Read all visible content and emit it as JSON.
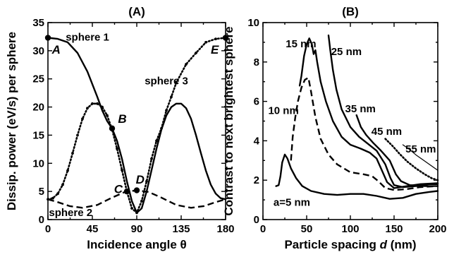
{
  "chart_data": [
    {
      "type": "line",
      "panel_label": "(A)",
      "xlabel": "Incidence angle θ",
      "ylabel": "Dissip. power (eV/s) per sphere",
      "xlim": [
        0,
        180
      ],
      "ylim": [
        0,
        35
      ],
      "xticks": [
        "0",
        "45",
        "90",
        "135",
        "180"
      ],
      "yticks": [
        "0",
        "5",
        "10",
        "15",
        "20",
        "25",
        "30",
        "35"
      ],
      "grid": false,
      "legend": "none",
      "series": [
        {
          "name": "sphere 1",
          "style": "solid",
          "points": [
            [
              0,
              32.3
            ],
            [
              10,
              32.1
            ],
            [
              20,
              31.5
            ],
            [
              30,
              29.6
            ],
            [
              40,
              26.3
            ],
            [
              50,
              21.8
            ],
            [
              55,
              19.4
            ],
            [
              60,
              17.5
            ],
            [
              65,
              16.2
            ],
            [
              70,
              14.0
            ],
            [
              75,
              10.8
            ],
            [
              80,
              6.8
            ],
            [
              85,
              3.3
            ],
            [
              90,
              1.2
            ],
            [
              95,
              2.0
            ],
            [
              100,
              5.0
            ],
            [
              105,
              8.8
            ],
            [
              110,
              12.6
            ],
            [
              115,
              16.0
            ],
            [
              120,
              18.5
            ],
            [
              125,
              20.0
            ],
            [
              130,
              20.6
            ],
            [
              135,
              20.6
            ],
            [
              140,
              19.8
            ],
            [
              145,
              17.9
            ],
            [
              150,
              15.0
            ],
            [
              155,
              11.8
            ],
            [
              160,
              8.7
            ],
            [
              165,
              6.2
            ],
            [
              170,
              4.6
            ],
            [
              175,
              3.8
            ],
            [
              180,
              3.6
            ]
          ]
        },
        {
          "name": "sphere 3",
          "style": "dotted",
          "points": [
            [
              0,
              3.6
            ],
            [
              5,
              3.8
            ],
            [
              10,
              4.6
            ],
            [
              15,
              6.2
            ],
            [
              20,
              8.7
            ],
            [
              25,
              11.8
            ],
            [
              30,
              15.0
            ],
            [
              35,
              17.9
            ],
            [
              40,
              19.8
            ],
            [
              45,
              20.6
            ],
            [
              50,
              20.6
            ],
            [
              55,
              20.0
            ],
            [
              60,
              18.5
            ],
            [
              65,
              16.0
            ],
            [
              70,
              12.6
            ],
            [
              75,
              8.8
            ],
            [
              80,
              5.0
            ],
            [
              85,
              2.0
            ],
            [
              90,
              1.2
            ],
            [
              95,
              3.3
            ],
            [
              100,
              6.8
            ],
            [
              105,
              10.8
            ],
            [
              110,
              14.0
            ],
            [
              115,
              16.2
            ],
            [
              120,
              19.4
            ],
            [
              125,
              21.8
            ],
            [
              130,
              24.3
            ],
            [
              140,
              27.6
            ],
            [
              150,
              29.6
            ],
            [
              160,
              31.5
            ],
            [
              170,
              32.1
            ],
            [
              180,
              32.3
            ]
          ]
        },
        {
          "name": "sphere 2",
          "style": "dashed",
          "points": [
            [
              0,
              3.6
            ],
            [
              10,
              3.1
            ],
            [
              22,
              2.4
            ],
            [
              35,
              2.1
            ],
            [
              50,
              2.6
            ],
            [
              65,
              3.9
            ],
            [
              78,
              4.9
            ],
            [
              90,
              5.2
            ],
            [
              102,
              4.9
            ],
            [
              115,
              3.9
            ],
            [
              130,
              2.6
            ],
            [
              145,
              2.1
            ],
            [
              158,
              2.4
            ],
            [
              170,
              3.1
            ],
            [
              180,
              3.6
            ]
          ]
        }
      ],
      "markers": [
        [
          0,
          32.3
        ],
        [
          65,
          16.2
        ],
        [
          80,
          5.0
        ],
        [
          90,
          5.2
        ],
        [
          180,
          32.3
        ]
      ],
      "point_labels": [
        {
          "text": "A",
          "x": 4,
          "y": 29.5
        },
        {
          "text": "B",
          "x": 71,
          "y": 17.2
        },
        {
          "text": "C",
          "x": 67,
          "y": 4.7
        },
        {
          "text": "D",
          "x": 89,
          "y": 6.4
        },
        {
          "text": "E",
          "x": 165,
          "y": 29.5
        }
      ],
      "annotations": [
        {
          "text": "sphere 1",
          "x": 18,
          "y": 31.8
        },
        {
          "text": "sphere 3",
          "x": 98,
          "y": 24.0
        },
        {
          "text": "sphere 2",
          "x": 1,
          "y": 0.6
        }
      ]
    },
    {
      "type": "line",
      "panel_label": "(B)",
      "xlabel_prefix": "Particle spacing ",
      "xlabel_var": "d",
      "xlabel_suffix": " (nm)",
      "ylabel": "Contrast to next brightest sphere",
      "xlim": [
        0,
        200
      ],
      "ylim": [
        0,
        10
      ],
      "xticks": [
        "0",
        "50",
        "100",
        "150",
        "200"
      ],
      "yticks": [
        "0",
        "2",
        "4",
        "6",
        "8",
        "10"
      ],
      "grid": false,
      "legend": "none",
      "series": [
        {
          "name": "a=5 nm",
          "style": "solid",
          "points": [
            [
              15,
              1.7
            ],
            [
              18,
              1.75
            ],
            [
              20,
              2.2
            ],
            [
              22,
              2.9
            ],
            [
              25,
              3.3
            ],
            [
              28,
              3.1
            ],
            [
              32,
              2.6
            ],
            [
              38,
              2.1
            ],
            [
              45,
              1.7
            ],
            [
              55,
              1.45
            ],
            [
              70,
              1.3
            ],
            [
              85,
              1.25
            ],
            [
              100,
              1.3
            ],
            [
              115,
              1.3
            ],
            [
              130,
              1.2
            ],
            [
              145,
              1.05
            ],
            [
              160,
              1.1
            ],
            [
              175,
              1.3
            ],
            [
              190,
              1.4
            ],
            [
              200,
              1.45
            ]
          ]
        },
        {
          "name": "10 nm",
          "style": "dashed",
          "points": [
            [
              32,
              3.0
            ],
            [
              34,
              4.2
            ],
            [
              37,
              5.2
            ],
            [
              40,
              6.0
            ],
            [
              44,
              6.7
            ],
            [
              48,
              7.1
            ],
            [
              52,
              7.2
            ],
            [
              55,
              6.5
            ],
            [
              60,
              5.2
            ],
            [
              66,
              4.1
            ],
            [
              75,
              3.3
            ],
            [
              85,
              2.8
            ],
            [
              100,
              2.4
            ],
            [
              115,
              2.3
            ],
            [
              125,
              2.2
            ],
            [
              132,
              1.95
            ],
            [
              140,
              1.6
            ],
            [
              150,
              1.5
            ],
            [
              165,
              1.55
            ],
            [
              180,
              1.65
            ],
            [
              200,
              1.7
            ]
          ]
        },
        {
          "name": "15 nm",
          "style": "solid",
          "points": [
            [
              42,
              6.8
            ],
            [
              44,
              7.3
            ],
            [
              47,
              8.3
            ],
            [
              50,
              8.9
            ],
            [
              53,
              9.2
            ],
            [
              56,
              8.9
            ],
            [
              58,
              8.4
            ],
            [
              60,
              8.6
            ],
            [
              62,
              8.0
            ],
            [
              66,
              7.0
            ],
            [
              72,
              6.0
            ],
            [
              80,
              5.0
            ],
            [
              90,
              4.2
            ],
            [
              100,
              3.8
            ],
            [
              112,
              3.6
            ],
            [
              122,
              3.4
            ],
            [
              130,
              3.1
            ],
            [
              137,
              2.4
            ],
            [
              142,
              1.9
            ],
            [
              150,
              1.6
            ],
            [
              165,
              1.7
            ],
            [
              180,
              1.8
            ],
            [
              200,
              1.85
            ]
          ]
        },
        {
          "name": "25 nm",
          "style": "solid",
          "points": [
            [
              75,
              9.35
            ],
            [
              76,
              9.0
            ],
            [
              77,
              8.6
            ],
            [
              80,
              7.6
            ],
            [
              84,
              6.6
            ],
            [
              90,
              5.6
            ],
            [
              100,
              4.7
            ],
            [
              110,
              4.2
            ],
            [
              120,
              3.85
            ],
            [
              130,
              3.5
            ],
            [
              140,
              2.8
            ],
            [
              146,
              2.1
            ],
            [
              150,
              1.75
            ],
            [
              160,
              1.65
            ],
            [
              175,
              1.7
            ],
            [
              190,
              1.8
            ],
            [
              200,
              1.8
            ]
          ]
        },
        {
          "name": "35 nm",
          "style": "solid",
          "points": [
            [
              107,
              5.3
            ],
            [
              112,
              4.7
            ],
            [
              118,
              4.3
            ],
            [
              126,
              3.9
            ],
            [
              135,
              3.5
            ],
            [
              145,
              3.0
            ],
            [
              152,
              2.3
            ],
            [
              158,
              1.95
            ],
            [
              168,
              1.75
            ],
            [
              185,
              1.7
            ],
            [
              200,
              1.7
            ]
          ]
        },
        {
          "name": "45 nm",
          "style": "dotted",
          "points": [
            [
              140,
              4.1
            ],
            [
              148,
              3.75
            ],
            [
              156,
              3.35
            ],
            [
              165,
              2.95
            ],
            [
              175,
              2.6
            ],
            [
              185,
              2.3
            ],
            [
              193,
              2.1
            ],
            [
              200,
              2.0
            ]
          ]
        },
        {
          "name": "55 nm",
          "style": "solid",
          "thin": true,
          "points": [
            [
              160,
              3.8
            ],
            [
              168,
              3.55
            ],
            [
              176,
              3.25
            ],
            [
              184,
              3.0
            ],
            [
              192,
              2.75
            ],
            [
              200,
              2.5
            ]
          ]
        }
      ],
      "annotations": [
        {
          "text": "15 nm",
          "x": 26,
          "y": 8.75
        },
        {
          "text": "25 nm",
          "x": 78,
          "y": 8.35
        },
        {
          "text": "10 nm",
          "x": 6,
          "y": 5.35
        },
        {
          "text": "35 nm",
          "x": 94,
          "y": 5.45
        },
        {
          "text": "45 nm",
          "x": 124,
          "y": 4.3
        },
        {
          "text": "55 nm",
          "x": 163,
          "y": 3.4
        },
        {
          "text": "a=5 nm",
          "x": 12,
          "y": 0.7
        }
      ]
    }
  ]
}
